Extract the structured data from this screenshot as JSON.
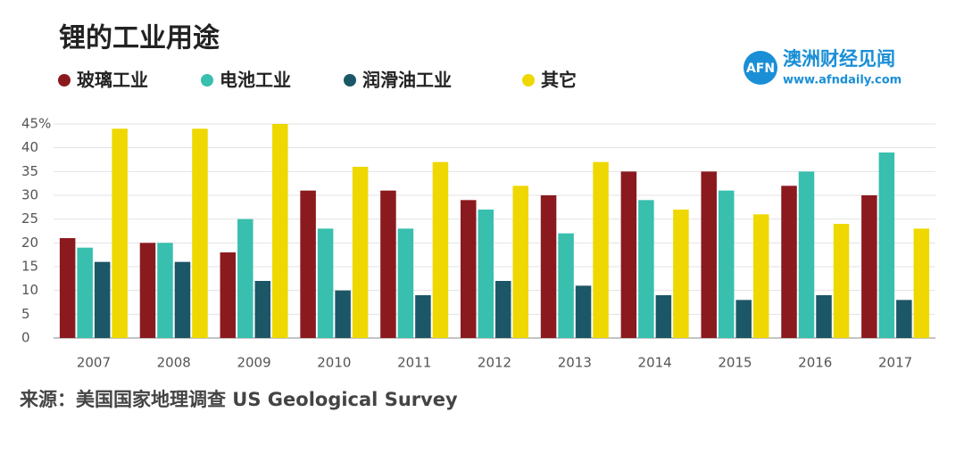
{
  "chart_data": {
    "type": "bar",
    "title": "锂的工业用途",
    "categories": [
      "2007",
      "2008",
      "2009",
      "2010",
      "2011",
      "2012",
      "2013",
      "2014",
      "2015",
      "2016",
      "2017"
    ],
    "series": [
      {
        "name": "玻璃工业",
        "color": "#8b1a1f",
        "values": [
          21,
          20,
          18,
          31,
          31,
          29,
          30,
          35,
          35,
          32,
          30
        ]
      },
      {
        "name": "电池工业",
        "color": "#38bfae",
        "values": [
          19,
          20,
          25,
          23,
          23,
          27,
          22,
          29,
          31,
          35,
          39
        ]
      },
      {
        "name": "润滑油工业",
        "color": "#1b5766",
        "values": [
          16,
          16,
          12,
          10,
          9,
          12,
          11,
          9,
          8,
          9,
          8
        ]
      },
      {
        "name": "其它",
        "color": "#eed800",
        "values": [
          44,
          44,
          45,
          36,
          37,
          32,
          37,
          27,
          26,
          24,
          23
        ]
      }
    ],
    "ylim": [
      0,
      45
    ],
    "yticks": [
      0,
      5,
      10,
      15,
      20,
      25,
      30,
      35,
      40,
      {
        "value": 45,
        "label": "45%"
      }
    ],
    "grid": true,
    "source": "来源：美国国家地理调查 US Geological Survey",
    "logo": {
      "mark": "AFN",
      "name": "澳洲财经见闻",
      "url": "www.afndaily.com"
    }
  }
}
